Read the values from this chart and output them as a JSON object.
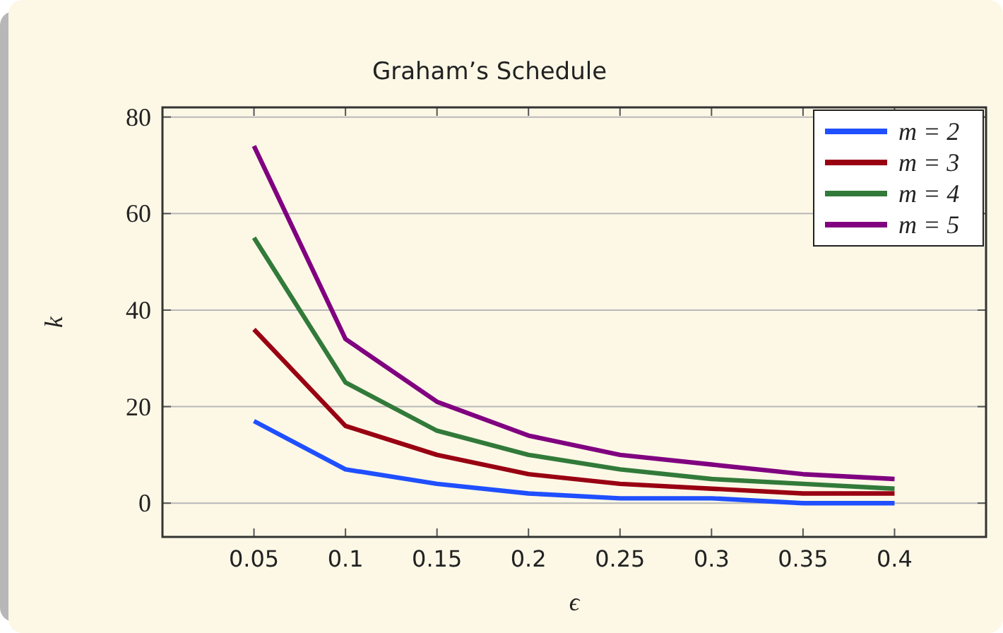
{
  "chart_data": {
    "type": "line",
    "title": "Graham’s Schedule",
    "xlabel": "ϵ",
    "ylabel": "k",
    "x": [
      0.05,
      0.1,
      0.15,
      0.2,
      0.25,
      0.3,
      0.35,
      0.4
    ],
    "series": [
      {
        "name": "m = 2",
        "color": "#1f4fff",
        "values": [
          17,
          7,
          4,
          2,
          1,
          1,
          0,
          0
        ]
      },
      {
        "name": "m = 3",
        "color": "#990012",
        "values": [
          36,
          16,
          10,
          6,
          4,
          3,
          2,
          2
        ]
      },
      {
        "name": "m = 4",
        "color": "#327a3a",
        "values": [
          55,
          25,
          15,
          10,
          7,
          5,
          4,
          3
        ]
      },
      {
        "name": "m = 5",
        "color": "#800080",
        "values": [
          74,
          34,
          21,
          14,
          10,
          8,
          6,
          5
        ]
      }
    ],
    "xlim": [
      0,
      0.45
    ],
    "xticks": [
      0.05,
      0.1,
      0.15,
      0.2,
      0.25,
      0.3,
      0.35,
      0.4
    ],
    "ylim": [
      -7,
      82
    ],
    "yticks": [
      0,
      20,
      40,
      60,
      80
    ],
    "grid": "y",
    "legend": "top right",
    "marker": "none",
    "line_style": "solid"
  }
}
